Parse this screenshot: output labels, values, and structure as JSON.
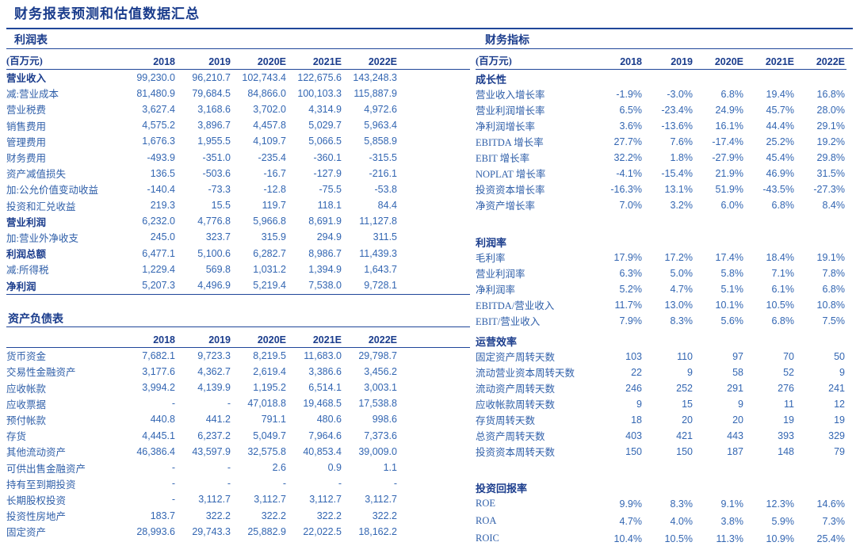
{
  "page_title": "财务报表预测和估值数据汇总",
  "colors": {
    "navy": "#1A3C8C",
    "body_blue": "#3366B2",
    "rule": "#1F4699"
  },
  "years": [
    "2018",
    "2019",
    "2020E",
    "2021E",
    "2022E"
  ],
  "income_statement": {
    "section_title": "利润表",
    "unit_label": "(百万元)",
    "rows": [
      {
        "label": "营业收入",
        "bold": true,
        "values": [
          "99,230.0",
          "96,210.7",
          "102,743.4",
          "122,675.6",
          "143,248.3"
        ]
      },
      {
        "label": "减:营业成本",
        "bold": false,
        "values": [
          "81,480.9",
          "79,684.5",
          "84,866.0",
          "100,103.3",
          "115,887.9"
        ]
      },
      {
        "label": "营业税费",
        "bold": false,
        "values": [
          "3,627.4",
          "3,168.6",
          "3,702.0",
          "4,314.9",
          "4,972.6"
        ]
      },
      {
        "label": "销售费用",
        "bold": false,
        "values": [
          "4,575.2",
          "3,896.7",
          "4,457.8",
          "5,029.7",
          "5,963.4"
        ]
      },
      {
        "label": "管理费用",
        "bold": false,
        "values": [
          "1,676.3",
          "1,955.5",
          "4,109.7",
          "5,066.5",
          "5,858.9"
        ]
      },
      {
        "label": "财务费用",
        "bold": false,
        "values": [
          "-493.9",
          "-351.0",
          "-235.4",
          "-360.1",
          "-315.5"
        ]
      },
      {
        "label": "资产减值损失",
        "bold": false,
        "values": [
          "136.5",
          "-503.6",
          "-16.7",
          "-127.9",
          "-216.1"
        ]
      },
      {
        "label": "加:公允价值变动收益",
        "bold": false,
        "values": [
          "-140.4",
          "-73.3",
          "-12.8",
          "-75.5",
          "-53.8"
        ]
      },
      {
        "label": "投资和汇兑收益",
        "bold": false,
        "values": [
          "219.3",
          "15.5",
          "119.7",
          "118.1",
          "84.4"
        ]
      },
      {
        "label": "营业利润",
        "bold": true,
        "values": [
          "6,232.0",
          "4,776.8",
          "5,966.8",
          "8,691.9",
          "11,127.8"
        ]
      },
      {
        "label": "加:营业外净收支",
        "bold": false,
        "values": [
          "245.0",
          "323.7",
          "315.9",
          "294.9",
          "311.5"
        ]
      },
      {
        "label": "利润总额",
        "bold": true,
        "values": [
          "6,477.1",
          "5,100.6",
          "6,282.7",
          "8,986.7",
          "11,439.3"
        ]
      },
      {
        "label": "减:所得税",
        "bold": false,
        "values": [
          "1,229.4",
          "569.8",
          "1,031.2",
          "1,394.9",
          "1,643.7"
        ]
      },
      {
        "label": "净利润",
        "bold": true,
        "values": [
          "5,207.3",
          "4,496.9",
          "5,219.4",
          "7,538.0",
          "9,728.1"
        ]
      }
    ]
  },
  "balance_sheet": {
    "section_title": "资产负债表",
    "unit_label": "",
    "rows": [
      {
        "label": "货币资金",
        "bold": false,
        "values": [
          "7,682.1",
          "9,723.3",
          "8,219.5",
          "11,683.0",
          "29,798.7"
        ]
      },
      {
        "label": "交易性金融资产",
        "bold": false,
        "values": [
          "3,177.6",
          "4,362.7",
          "2,619.4",
          "3,386.6",
          "3,456.2"
        ]
      },
      {
        "label": "应收帐款",
        "bold": false,
        "values": [
          "3,994.2",
          "4,139.9",
          "1,195.2",
          "6,514.1",
          "3,003.1"
        ]
      },
      {
        "label": "应收票据",
        "bold": false,
        "values": [
          "-",
          "-",
          "47,018.8",
          "19,468.5",
          "17,538.8"
        ]
      },
      {
        "label": "预付帐款",
        "bold": false,
        "values": [
          "440.8",
          "441.2",
          "791.1",
          "480.6",
          "998.6"
        ]
      },
      {
        "label": "存货",
        "bold": false,
        "values": [
          "4,445.1",
          "6,237.2",
          "5,049.7",
          "7,964.6",
          "7,373.6"
        ]
      },
      {
        "label": "其他流动资产",
        "bold": false,
        "values": [
          "46,386.4",
          "43,597.9",
          "32,575.8",
          "40,853.4",
          "39,009.0"
        ]
      },
      {
        "label": "可供出售金融资产",
        "bold": false,
        "values": [
          "-",
          "-",
          "2.6",
          "0.9",
          "1.1"
        ]
      },
      {
        "label": "持有至到期投资",
        "bold": false,
        "values": [
          "-",
          "-",
          "-",
          "-",
          "-"
        ]
      },
      {
        "label": "长期股权投资",
        "bold": false,
        "values": [
          "-",
          "3,112.7",
          "3,112.7",
          "3,112.7",
          "3,112.7"
        ]
      },
      {
        "label": "投资性房地产",
        "bold": false,
        "values": [
          "183.7",
          "322.2",
          "322.2",
          "322.2",
          "322.2"
        ]
      },
      {
        "label": "固定资产",
        "bold": false,
        "values": [
          "28,993.6",
          "29,743.3",
          "25,882.9",
          "22,022.5",
          "18,162.2"
        ]
      }
    ]
  },
  "financial_indicators": {
    "section_title": "财务指标",
    "unit_label": "(百万元)",
    "groups": [
      {
        "group_title": "成长性",
        "rows": [
          {
            "label": "营业收入增长率",
            "bold": false,
            "values": [
              "-1.9%",
              "-3.0%",
              "6.8%",
              "19.4%",
              "16.8%"
            ]
          },
          {
            "label": "营业利润增长率",
            "bold": false,
            "values": [
              "6.5%",
              "-23.4%",
              "24.9%",
              "45.7%",
              "28.0%"
            ]
          },
          {
            "label": "净利润增长率",
            "bold": false,
            "values": [
              "3.6%",
              "-13.6%",
              "16.1%",
              "44.4%",
              "29.1%"
            ]
          },
          {
            "label": "EBITDA 增长率",
            "bold": false,
            "values": [
              "27.7%",
              "7.6%",
              "-17.4%",
              "25.2%",
              "19.2%"
            ]
          },
          {
            "label": "EBIT 增长率",
            "bold": false,
            "values": [
              "32.2%",
              "1.8%",
              "-27.9%",
              "45.4%",
              "29.8%"
            ]
          },
          {
            "label": "NOPLAT 增长率",
            "bold": false,
            "values": [
              "-4.1%",
              "-15.4%",
              "21.9%",
              "46.9%",
              "31.5%"
            ]
          },
          {
            "label": "投资资本增长率",
            "bold": false,
            "values": [
              "-16.3%",
              "13.1%",
              "51.9%",
              "-43.5%",
              "-27.3%"
            ]
          },
          {
            "label": "净资产增长率",
            "bold": false,
            "values": [
              "7.0%",
              "3.2%",
              "6.0%",
              "6.8%",
              "8.4%"
            ]
          }
        ]
      },
      {
        "group_title": "利润率",
        "rows": [
          {
            "label": "毛利率",
            "bold": false,
            "values": [
              "17.9%",
              "17.2%",
              "17.4%",
              "18.4%",
              "19.1%"
            ]
          },
          {
            "label": "营业利润率",
            "bold": false,
            "values": [
              "6.3%",
              "5.0%",
              "5.8%",
              "7.1%",
              "7.8%"
            ]
          },
          {
            "label": "净利润率",
            "bold": false,
            "values": [
              "5.2%",
              "4.7%",
              "5.1%",
              "6.1%",
              "6.8%"
            ]
          },
          {
            "label": "EBITDA/营业收入",
            "bold": false,
            "values": [
              "11.7%",
              "13.0%",
              "10.1%",
              "10.5%",
              "10.8%"
            ]
          },
          {
            "label": "EBIT/营业收入",
            "bold": false,
            "values": [
              "7.9%",
              "8.3%",
              "5.6%",
              "6.8%",
              "7.5%"
            ]
          }
        ]
      },
      {
        "group_title": "运营效率",
        "rows": [
          {
            "label": "固定资产周转天数",
            "bold": false,
            "values": [
              "103",
              "110",
              "97",
              "70",
              "50"
            ]
          },
          {
            "label": "流动营业资本周转天数",
            "bold": false,
            "values": [
              "22",
              "9",
              "58",
              "52",
              "9"
            ]
          },
          {
            "label": "流动资产周转天数",
            "bold": false,
            "values": [
              "246",
              "252",
              "291",
              "276",
              "241"
            ]
          },
          {
            "label": "应收帐款周转天数",
            "bold": false,
            "values": [
              "9",
              "15",
              "9",
              "11",
              "12"
            ]
          },
          {
            "label": "存货周转天数",
            "bold": false,
            "values": [
              "18",
              "20",
              "20",
              "19",
              "19"
            ]
          },
          {
            "label": "总资产周转天数",
            "bold": false,
            "values": [
              "403",
              "421",
              "443",
              "393",
              "329"
            ]
          },
          {
            "label": "投资资本周转天数",
            "bold": false,
            "values": [
              "150",
              "150",
              "187",
              "148",
              "79"
            ]
          }
        ]
      },
      {
        "group_title": "投资回报率",
        "rows": [
          {
            "label": "ROE",
            "bold": false,
            "values": [
              "9.9%",
              "8.3%",
              "9.1%",
              "12.3%",
              "14.6%"
            ]
          },
          {
            "label": "ROA",
            "bold": false,
            "values": [
              "4.7%",
              "4.0%",
              "3.8%",
              "5.9%",
              "7.3%"
            ]
          },
          {
            "label": "ROIC",
            "bold": false,
            "values": [
              "10.4%",
              "10.5%",
              "11.3%",
              "10.9%",
              "25.4%"
            ]
          }
        ]
      }
    ]
  }
}
